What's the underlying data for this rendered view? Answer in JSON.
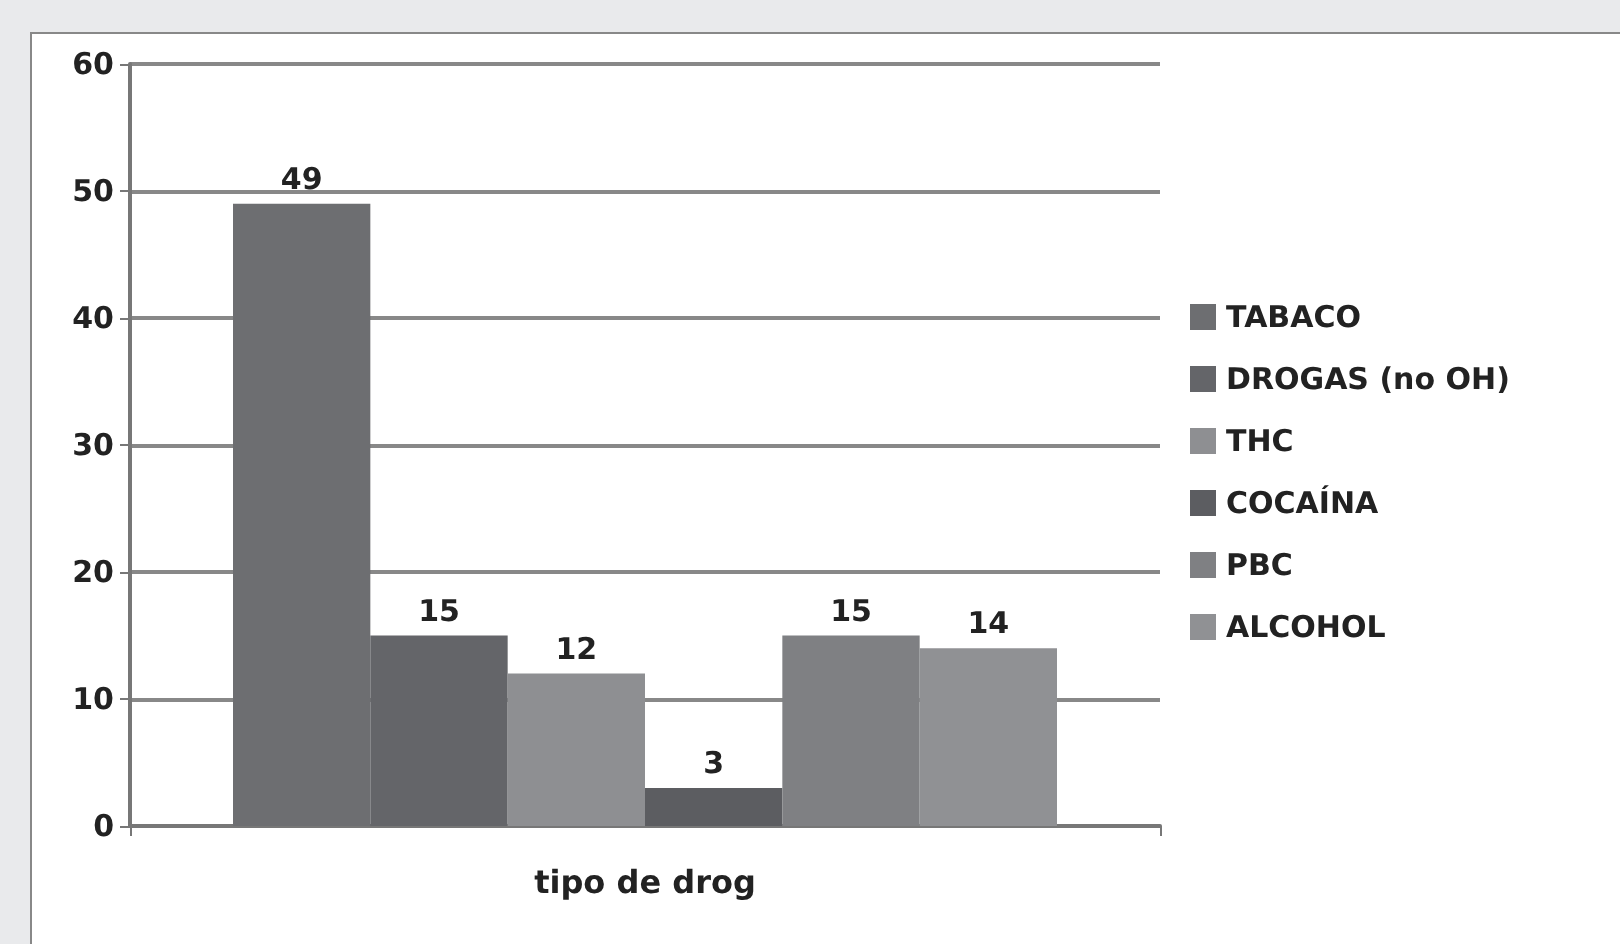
{
  "chart_data": {
    "type": "bar",
    "categories": [
      "tipo de drog"
    ],
    "series": [
      {
        "name": "TABACO",
        "color": "#6d6e71",
        "values": [
          49
        ]
      },
      {
        "name": "DROGAS (no OH)",
        "color": "#646569",
        "values": [
          15
        ]
      },
      {
        "name": "THC",
        "color": "#8e8f92",
        "values": [
          12
        ]
      },
      {
        "name": "COCAÍNA",
        "color": "#5c5d61",
        "values": [
          3
        ]
      },
      {
        "name": "PBC",
        "color": "#7f8083",
        "values": [
          15
        ]
      },
      {
        "name": "ALCOHOL",
        "color": "#909194",
        "values": [
          14
        ]
      }
    ],
    "ylim": [
      0,
      60
    ],
    "yticks": [
      0,
      10,
      20,
      30,
      40,
      50,
      60
    ],
    "grid": "y",
    "legend": "right",
    "data_labels": true
  }
}
